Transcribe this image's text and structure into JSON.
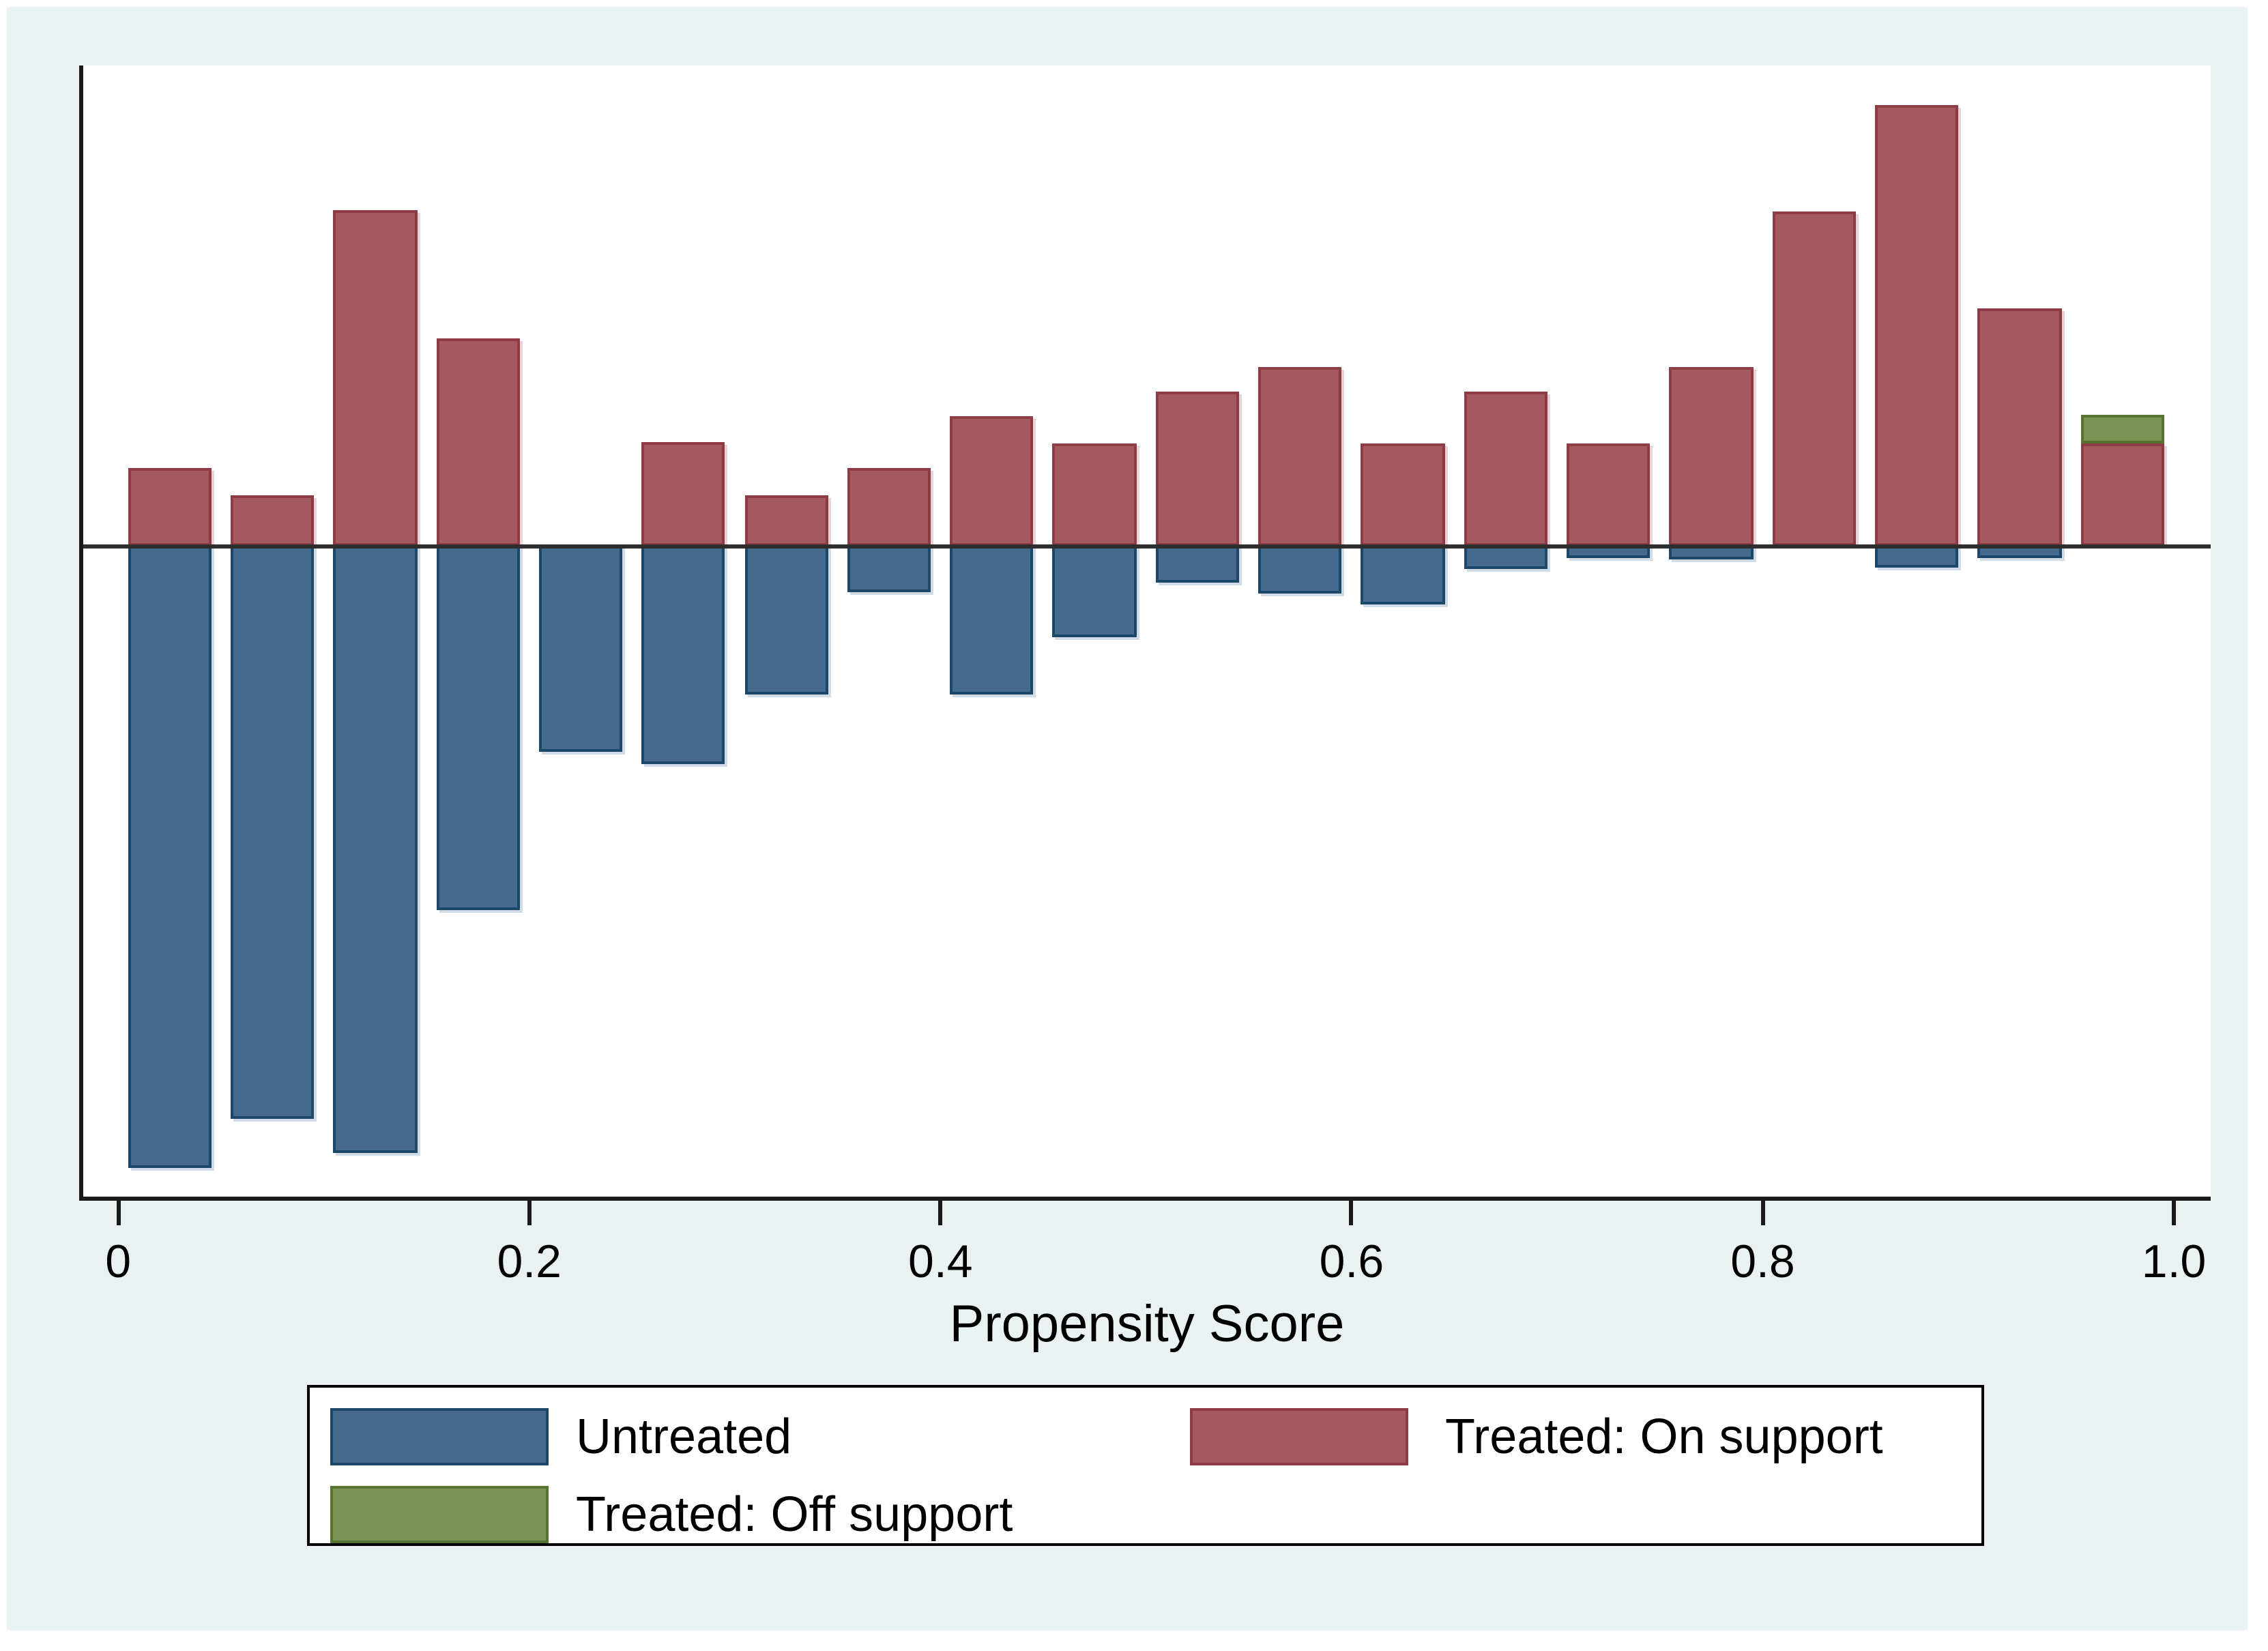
{
  "figure": {
    "background_color": "#EAF1F3",
    "plot_background_color": "#FFFFFF",
    "axis_line_color": "#1A1A1A"
  },
  "chart_data": {
    "type": "bar",
    "title": "",
    "xlabel": "Propensity Score",
    "ylabel": "",
    "grid": false,
    "legend_position": "bottom",
    "x_range": [
      0,
      1
    ],
    "bin_width": 0.05,
    "x_ticks": [
      "0",
      "0.2",
      "0.4",
      "0.6",
      "0.8",
      "1.0"
    ],
    "x_tick_values": [
      0,
      0.2,
      0.4,
      0.6,
      0.8,
      1.0
    ],
    "y_axis": {
      "tick_labels_visible": false,
      "unit": "percent of plot height (no numeric scale shown)",
      "zero_line_pct_from_top": 42.52
    },
    "series": [
      {
        "name": "Untreated",
        "color": "#466A8E",
        "border_color": "#1D4768",
        "direction": "below-axis"
      },
      {
        "name": "Treated: On support",
        "color": "#A45A60",
        "border_color": "#8D3B45",
        "direction": "above-axis"
      },
      {
        "name": "Treated: Off support",
        "color": "#7A9455",
        "border_color": "#567430",
        "direction": "stacked-on-treated"
      }
    ],
    "bins": [
      {
        "x0": 0.0,
        "x1": 0.05,
        "treated_on": 6.88,
        "untreated": 54.89,
        "treated_off": 0
      },
      {
        "x0": 0.05,
        "x1": 0.1,
        "treated_on": 4.52,
        "untreated": 50.66,
        "treated_off": 0
      },
      {
        "x0": 0.1,
        "x1": 0.15,
        "treated_on": 29.79,
        "untreated": 53.68,
        "treated_off": 0
      },
      {
        "x0": 0.15,
        "x1": 0.2,
        "treated_on": 18.34,
        "untreated": 32.15,
        "treated_off": 0
      },
      {
        "x0": 0.2,
        "x1": 0.25,
        "treated_on": 0,
        "untreated": 18.21,
        "treated_off": 0
      },
      {
        "x0": 0.25,
        "x1": 0.3,
        "treated_on": 9.17,
        "untreated": 19.24,
        "treated_off": 0
      },
      {
        "x0": 0.3,
        "x1": 0.35,
        "treated_on": 4.52,
        "untreated": 13.03,
        "treated_off": 0
      },
      {
        "x0": 0.35,
        "x1": 0.4,
        "treated_on": 6.88,
        "untreated": 4.04,
        "treated_off": 0
      },
      {
        "x0": 0.4,
        "x1": 0.45,
        "treated_on": 11.52,
        "untreated": 13.03,
        "treated_off": 0
      },
      {
        "x0": 0.45,
        "x1": 0.5,
        "treated_on": 9.05,
        "untreated": 8.08,
        "treated_off": 0
      },
      {
        "x0": 0.5,
        "x1": 0.55,
        "treated_on": 13.75,
        "untreated": 3.14,
        "treated_off": 0
      },
      {
        "x0": 0.55,
        "x1": 0.6,
        "treated_on": 15.86,
        "untreated": 4.22,
        "treated_off": 0
      },
      {
        "x0": 0.6,
        "x1": 0.65,
        "treated_on": 9.05,
        "untreated": 5.07,
        "treated_off": 0
      },
      {
        "x0": 0.65,
        "x1": 0.7,
        "treated_on": 13.75,
        "untreated": 1.99,
        "treated_off": 0
      },
      {
        "x0": 0.7,
        "x1": 0.75,
        "treated_on": 9.05,
        "untreated": 1.03,
        "treated_off": 0
      },
      {
        "x0": 0.75,
        "x1": 0.8,
        "treated_on": 15.86,
        "untreated": 1.09,
        "treated_off": 0
      },
      {
        "x0": 0.8,
        "x1": 0.85,
        "treated_on": 29.67,
        "untreated": 0,
        "treated_off": 0
      },
      {
        "x0": 0.85,
        "x1": 0.9,
        "treated_on": 39.08,
        "untreated": 1.93,
        "treated_off": 0
      },
      {
        "x0": 0.9,
        "x1": 0.95,
        "treated_on": 20.99,
        "untreated": 1.03,
        "treated_off": 0
      },
      {
        "x0": 0.95,
        "x1": 1.0,
        "treated_on": 9.05,
        "untreated": 0,
        "treated_off": 2.53
      }
    ],
    "layout": {
      "x0_pct": 1.64,
      "x_scale_pct_per_unit": 96.63,
      "bar_inset_pct": 0.45
    }
  },
  "legend": {
    "entries": [
      {
        "label": "Untreated",
        "color": "#466A8E",
        "border_color": "#1D4768"
      },
      {
        "label": "Treated: On support",
        "color": "#A45A60",
        "border_color": "#8D3B45"
      },
      {
        "label": "Treated: Off support",
        "color": "#7A9455",
        "border_color": "#567430"
      }
    ]
  }
}
